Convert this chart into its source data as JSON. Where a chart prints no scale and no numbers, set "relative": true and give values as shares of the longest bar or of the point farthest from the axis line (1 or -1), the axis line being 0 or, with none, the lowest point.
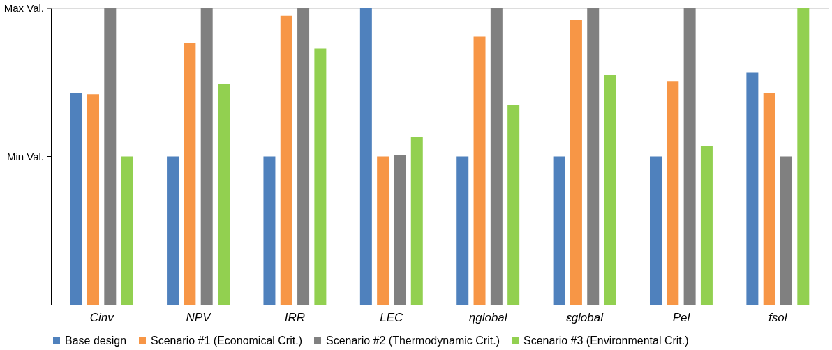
{
  "chart_data": {
    "type": "bar",
    "categories": [
      "Cinv",
      "NPV",
      "IRR",
      "LEC",
      "ηglobal",
      "εglobal",
      "Pel",
      "fsol"
    ],
    "series": [
      {
        "name": "Base design",
        "color": "#4f81bd",
        "values": [
          0.715,
          0.5,
          0.5,
          1,
          0.5,
          0.5,
          0.5,
          0.785
        ]
      },
      {
        "name": "Scenario #1 (Economical Crit.)",
        "color": "#f79646",
        "values": [
          0.71,
          0.885,
          0.975,
          0.5,
          0.905,
          0.96,
          0.755,
          0.715
        ]
      },
      {
        "name": "Scenario #2 (Thermodynamic Crit.)",
        "color": "#808080",
        "values": [
          1,
          1,
          1,
          0.505,
          1,
          1,
          1,
          0.5
        ]
      },
      {
        "name": "Scenario #3 (Environmental Crit.)",
        "color": "#92d050",
        "values": [
          0.5,
          0.745,
          0.865,
          0.565,
          0.675,
          0.775,
          0.535,
          1
        ]
      }
    ],
    "relative": true,
    "annotations": [
      "Min Val.",
      "Max Val."
    ],
    "grid": false,
    "legend": "bottom"
  }
}
